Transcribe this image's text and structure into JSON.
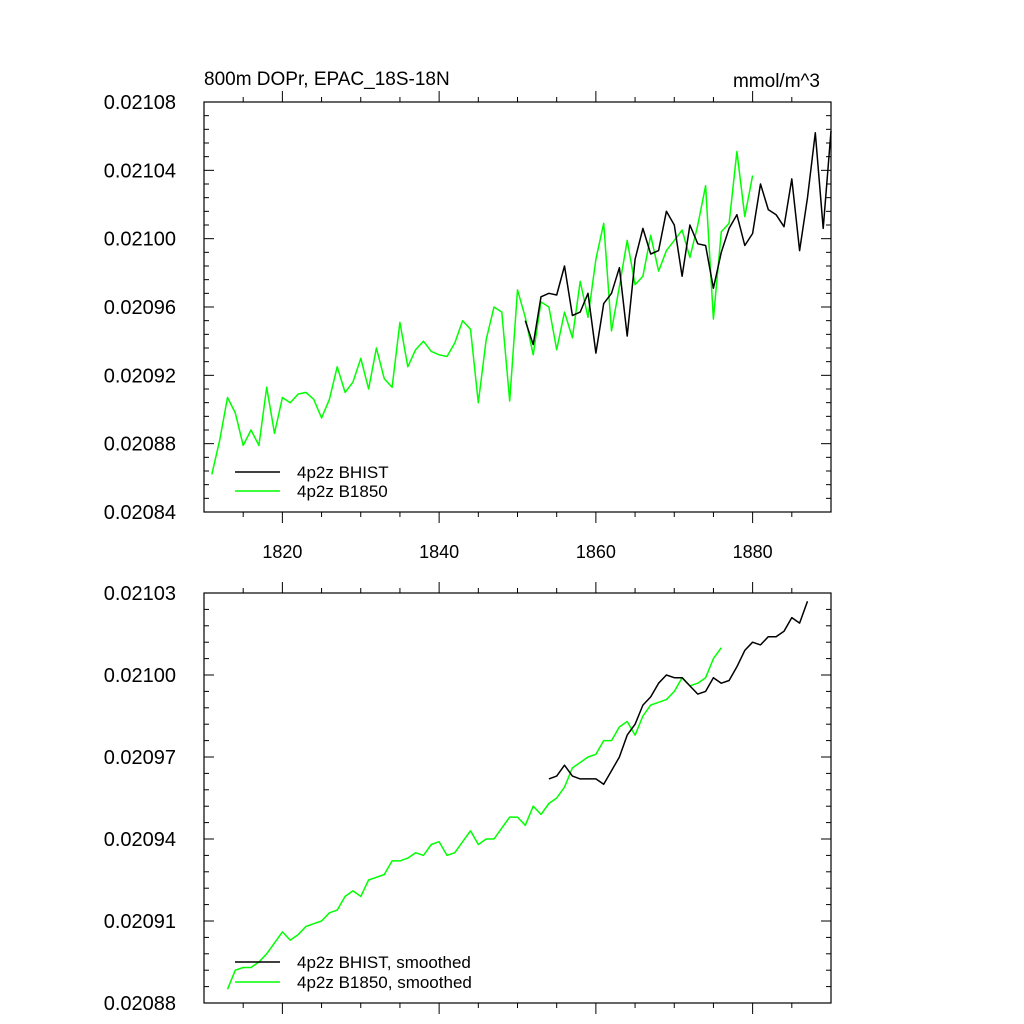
{
  "chart_data": [
    {
      "type": "line",
      "title": "800m DOPr, EPAC_18S-18N",
      "units": "mmol/m^3",
      "xlim": [
        1810,
        1890
      ],
      "ylim": [
        0.02084,
        0.02108
      ],
      "xticks": [
        1820,
        1840,
        1860,
        1880
      ],
      "xtick_labels": [
        "1820",
        "1840",
        "1860",
        "1880"
      ],
      "yticks": [
        0.02084,
        0.02088,
        0.02092,
        0.02096,
        0.021,
        0.02104,
        0.02108
      ],
      "ytick_labels": [
        "0.02084",
        "0.02088",
        "0.02092",
        "0.02096",
        "0.02100",
        "0.02104",
        "0.02108"
      ],
      "legend_position": "bottom-left",
      "series": [
        {
          "name": "4p2z BHIST",
          "color": "#000000",
          "x_start": 1851,
          "values": [
            0.020952,
            0.020938,
            0.020966,
            0.020968,
            0.020967,
            0.020984,
            0.020955,
            0.020957,
            0.020968,
            0.020933,
            0.020962,
            0.020968,
            0.020983,
            0.020943,
            0.020988,
            0.021006,
            0.020991,
            0.020993,
            0.021016,
            0.021008,
            0.020978,
            0.021008,
            0.020997,
            0.020996,
            0.020971,
            0.020992,
            0.021006,
            0.021014,
            0.020996,
            0.021003,
            0.021032,
            0.021017,
            0.021014,
            0.021007,
            0.021035,
            0.020993,
            0.021024,
            0.021062,
            0.021006,
            0.021063
          ]
        },
        {
          "name": "4p2z B1850",
          "color": "#00ff00",
          "x_start": 1811,
          "values": [
            0.020862,
            0.020882,
            0.020907,
            0.020898,
            0.020879,
            0.020888,
            0.020879,
            0.020913,
            0.020886,
            0.020907,
            0.020904,
            0.020909,
            0.02091,
            0.020906,
            0.020895,
            0.020906,
            0.020925,
            0.02091,
            0.020916,
            0.02093,
            0.020912,
            0.020936,
            0.020918,
            0.020913,
            0.020951,
            0.020925,
            0.020935,
            0.02094,
            0.020934,
            0.020932,
            0.020931,
            0.020939,
            0.020952,
            0.020947,
            0.020904,
            0.020941,
            0.02096,
            0.020957,
            0.020905,
            0.02097,
            0.020954,
            0.020932,
            0.020963,
            0.02096,
            0.020935,
            0.020957,
            0.020942,
            0.020975,
            0.020954,
            0.020988,
            0.021009,
            0.020946,
            0.020972,
            0.020999,
            0.020973,
            0.020978,
            0.021002,
            0.020981,
            0.020993,
            0.020999,
            0.021005,
            0.020989,
            0.021008,
            0.021031,
            0.020953,
            0.021004,
            0.021009,
            0.021051,
            0.021013,
            0.021037
          ]
        }
      ]
    },
    {
      "type": "line",
      "title": "",
      "units": "",
      "xlim": [
        1810,
        1890
      ],
      "ylim": [
        0.02088,
        0.02103
      ],
      "xticks": [
        1820,
        1840,
        1860,
        1880
      ],
      "xtick_labels": [
        "",
        "",
        "",
        ""
      ],
      "yticks": [
        0.02088,
        0.02091,
        0.02094,
        0.02097,
        0.021,
        0.02103
      ],
      "ytick_labels": [
        "0.02088",
        "0.02091",
        "0.02094",
        "0.02097",
        "0.02100",
        "0.02103"
      ],
      "legend_position": "bottom-left",
      "series": [
        {
          "name": "4p2z BHIST, smoothed",
          "color": "#000000",
          "x_start": 1854,
          "values": [
            0.020962,
            0.020963,
            0.020967,
            0.020963,
            0.020962,
            0.020962,
            0.020962,
            0.02096,
            0.020965,
            0.02097,
            0.020978,
            0.020982,
            0.020989,
            0.020992,
            0.020997,
            0.021,
            0.020999,
            0.020999,
            0.020996,
            0.020993,
            0.020994,
            0.020999,
            0.020997,
            0.020998,
            0.021003,
            0.021009,
            0.021012,
            0.021011,
            0.021014,
            0.021014,
            0.021016,
            0.021021,
            0.021019,
            0.021027
          ]
        },
        {
          "name": "4p2z B1850, smoothed",
          "color": "#00ff00",
          "x_start": 1813,
          "values": [
            0.020885,
            0.020892,
            0.020893,
            0.020893,
            0.020895,
            0.020898,
            0.020902,
            0.020906,
            0.020903,
            0.020905,
            0.020908,
            0.020909,
            0.02091,
            0.020913,
            0.020914,
            0.020919,
            0.020921,
            0.020919,
            0.020925,
            0.020926,
            0.020927,
            0.020932,
            0.020932,
            0.020933,
            0.020935,
            0.020934,
            0.020938,
            0.020939,
            0.020934,
            0.020935,
            0.020939,
            0.020943,
            0.020938,
            0.02094,
            0.02094,
            0.020944,
            0.020948,
            0.020948,
            0.020945,
            0.020952,
            0.020949,
            0.020953,
            0.020955,
            0.020959,
            0.020966,
            0.020968,
            0.02097,
            0.020971,
            0.020976,
            0.020976,
            0.020981,
            0.020983,
            0.020978,
            0.020985,
            0.020989,
            0.02099,
            0.020991,
            0.020994,
            0.020999,
            0.020996,
            0.020997,
            0.020999,
            0.021006,
            0.02101
          ]
        }
      ]
    }
  ]
}
